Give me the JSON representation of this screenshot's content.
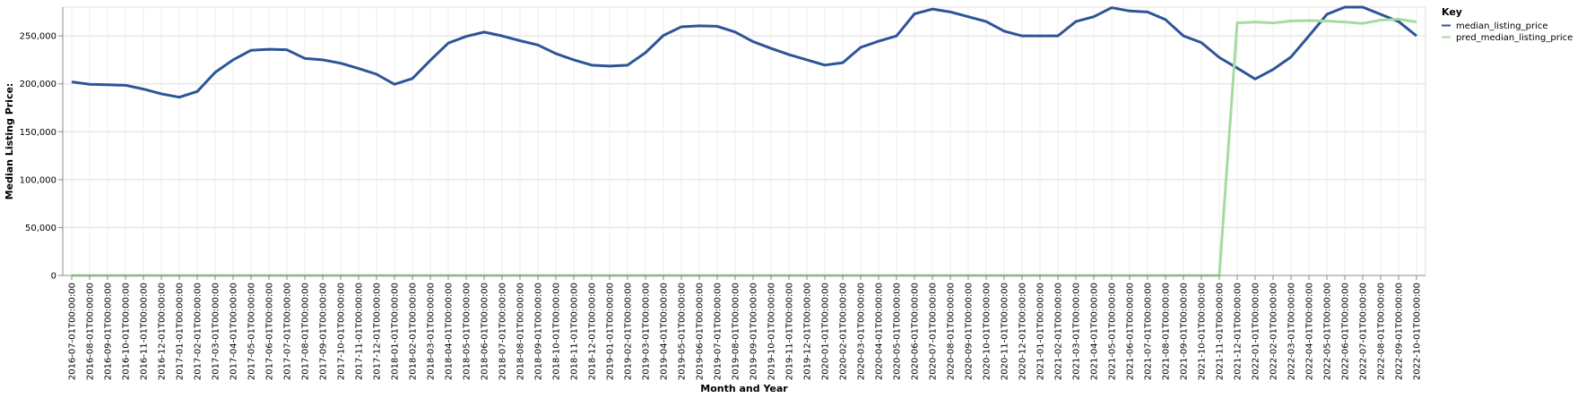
{
  "chart_data": {
    "type": "line",
    "xlabel": "Month and Year",
    "ylabel": "Median Listing Price:",
    "ylim": [
      0,
      280000
    ],
    "yticks": [
      0,
      50000,
      100000,
      150000,
      200000,
      250000
    ],
    "ytick_labels": [
      "0",
      "50,000",
      "100,000",
      "150,000",
      "200,000",
      "250,000"
    ],
    "grid": true,
    "legend": {
      "title": "Key",
      "placement": "top-right"
    },
    "x": [
      "2016-07-01T00:00:00",
      "2016-08-01T00:00:00",
      "2016-09-01T00:00:00",
      "2016-10-01T00:00:00",
      "2016-11-01T00:00:00",
      "2016-12-01T00:00:00",
      "2017-01-01T00:00:00",
      "2017-02-01T00:00:00",
      "2017-03-01T00:00:00",
      "2017-04-01T00:00:00",
      "2017-05-01T00:00:00",
      "2017-06-01T00:00:00",
      "2017-07-01T00:00:00",
      "2017-08-01T00:00:00",
      "2017-09-01T00:00:00",
      "2017-10-01T00:00:00",
      "2017-11-01T00:00:00",
      "2017-12-01T00:00:00",
      "2018-01-01T00:00:00",
      "2018-02-01T00:00:00",
      "2018-03-01T00:00:00",
      "2018-04-01T00:00:00",
      "2018-05-01T00:00:00",
      "2018-06-01T00:00:00",
      "2018-07-01T00:00:00",
      "2018-08-01T00:00:00",
      "2018-09-01T00:00:00",
      "2018-10-01T00:00:00",
      "2018-11-01T00:00:00",
      "2018-12-01T00:00:00",
      "2019-01-01T00:00:00",
      "2019-02-01T00:00:00",
      "2019-03-01T00:00:00",
      "2019-04-01T00:00:00",
      "2019-05-01T00:00:00",
      "2019-06-01T00:00:00",
      "2019-07-01T00:00:00",
      "2019-08-01T00:00:00",
      "2019-09-01T00:00:00",
      "2019-10-01T00:00:00",
      "2019-11-01T00:00:00",
      "2019-12-01T00:00:00",
      "2020-01-01T00:00:00",
      "2020-02-01T00:00:00",
      "2020-03-01T00:00:00",
      "2020-04-01T00:00:00",
      "2020-05-01T00:00:00",
      "2020-06-01T00:00:00",
      "2020-07-01T00:00:00",
      "2020-08-01T00:00:00",
      "2020-09-01T00:00:00",
      "2020-10-01T00:00:00",
      "2020-11-01T00:00:00",
      "2020-12-01T00:00:00",
      "2021-01-01T00:00:00",
      "2021-02-01T00:00:00",
      "2021-03-01T00:00:00",
      "2021-04-01T00:00:00",
      "2021-05-01T00:00:00",
      "2021-06-01T00:00:00",
      "2021-07-01T00:00:00",
      "2021-08-01T00:00:00",
      "2021-09-01T00:00:00",
      "2021-10-01T00:00:00",
      "2021-11-01T00:00:00",
      "2021-12-01T00:00:00",
      "2022-01-01T00:00:00",
      "2022-02-01T00:00:00",
      "2022-03-01T00:00:00",
      "2022-04-01T00:00:00",
      "2022-05-01T00:00:00",
      "2022-06-01T00:00:00",
      "2022-07-01T00:00:00",
      "2022-08-01T00:00:00",
      "2022-09-01T00:00:00",
      "2022-10-01T00:00:00"
    ],
    "series": [
      {
        "name": "median_listing_price",
        "color": "#2c5597",
        "values": [
          202000,
          199500,
          199000,
          198500,
          194500,
          189500,
          186000,
          192000,
          212000,
          225000,
          235000,
          236000,
          235500,
          226500,
          225000,
          221500,
          216000,
          210000,
          199500,
          205500,
          224500,
          242500,
          249500,
          254000,
          250000,
          245000,
          240500,
          231500,
          225000,
          219500,
          218500,
          219500,
          232500,
          250500,
          259500,
          260500,
          260000,
          254000,
          244000,
          237000,
          230500,
          225000,
          219500,
          222000,
          238000,
          244500,
          250000,
          273000,
          278000,
          275000,
          270000,
          265000,
          255000,
          250000,
          250000,
          250000,
          265000,
          270000,
          279500,
          276000,
          275000,
          267000,
          250000,
          243000,
          227500,
          216500,
          205000,
          215000,
          228000,
          250000,
          272500,
          280000,
          280000,
          272500,
          265000,
          250000
        ]
      },
      {
        "name": "pred_median_listing_price",
        "color": "#a6dba0",
        "values": [
          0,
          0,
          0,
          0,
          0,
          0,
          0,
          0,
          0,
          0,
          0,
          0,
          0,
          0,
          0,
          0,
          0,
          0,
          0,
          0,
          0,
          0,
          0,
          0,
          0,
          0,
          0,
          0,
          0,
          0,
          0,
          0,
          0,
          0,
          0,
          0,
          0,
          0,
          0,
          0,
          0,
          0,
          0,
          0,
          0,
          0,
          0,
          0,
          0,
          0,
          0,
          0,
          0,
          0,
          0,
          0,
          0,
          0,
          0,
          0,
          0,
          0,
          0,
          0,
          0,
          263500,
          264500,
          263500,
          265500,
          266000,
          265500,
          264500,
          263000,
          266500,
          267500,
          264500
        ]
      }
    ]
  }
}
